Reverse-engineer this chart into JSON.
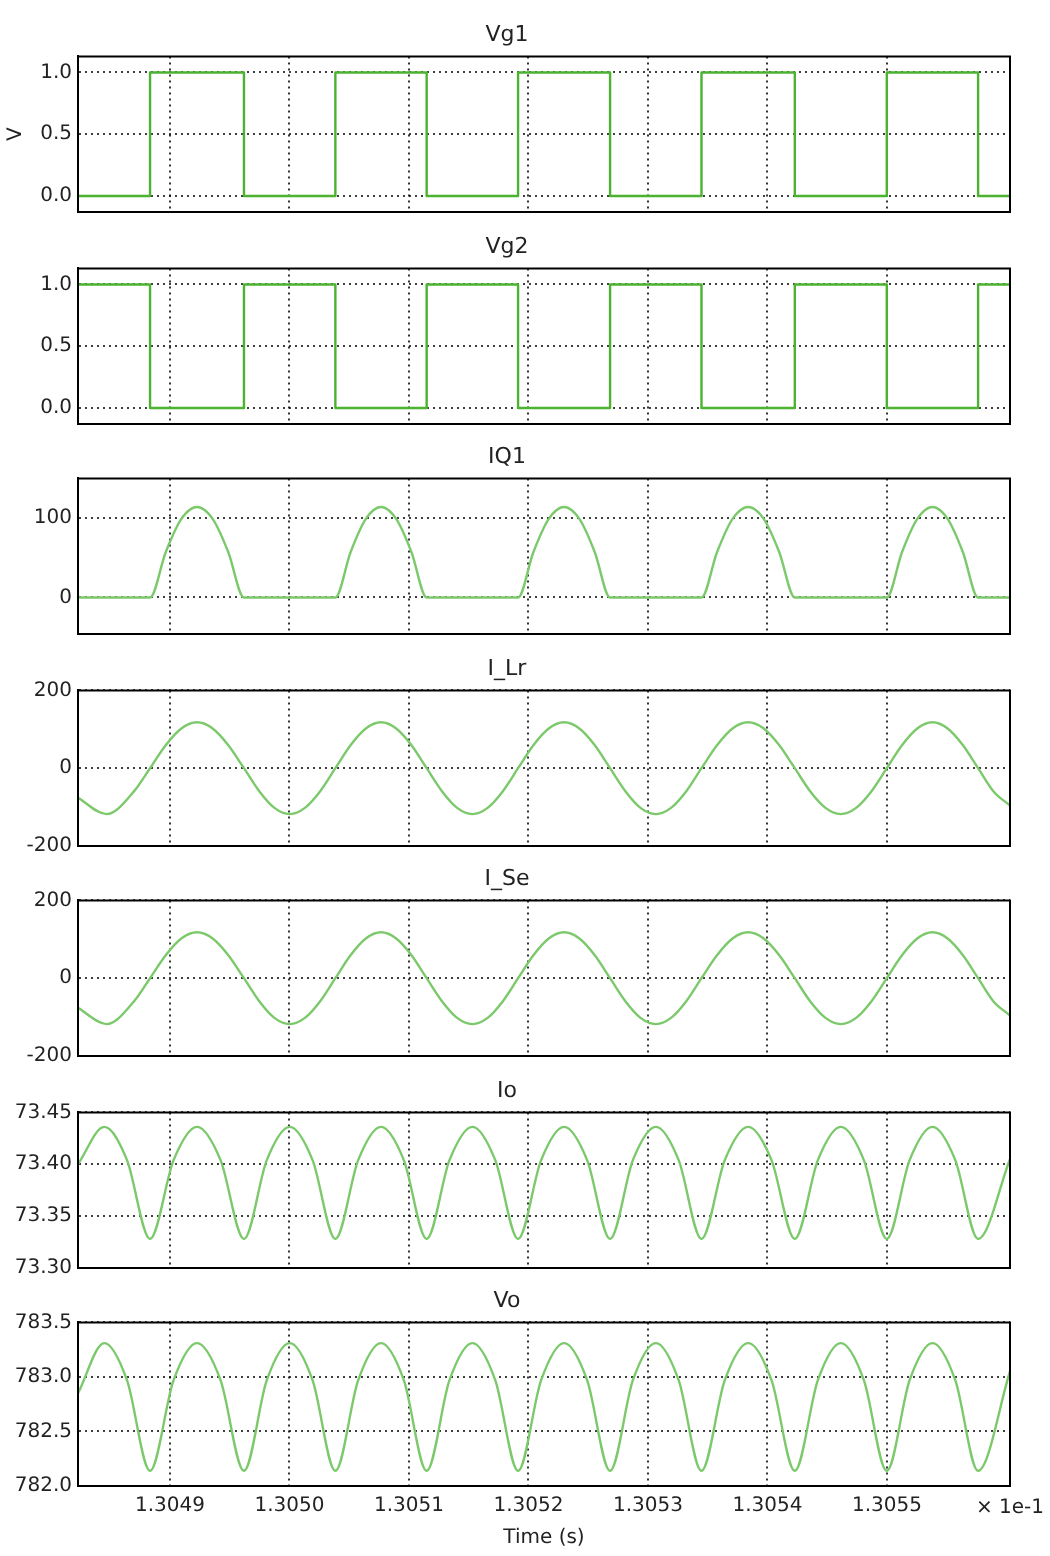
{
  "chart_data": [
    {
      "type": "step",
      "title": "Vg1",
      "ylabel": "V",
      "color": "#4cb332",
      "grid": true,
      "tick_labels": "y",
      "x": [
        1.304823,
        1.3048833,
        1.3049619,
        1.3050384,
        1.3051148,
        1.3051913,
        1.3052683,
        1.3053448,
        1.3054229,
        1.3054999,
        1.3055763,
        1.305603
      ],
      "values": [
        0,
        1,
        0,
        1,
        0,
        1,
        0,
        1,
        0,
        1,
        0,
        0
      ],
      "xlim": [
        1.304823,
        1.305603
      ],
      "xticks": [
        1.3049,
        1.305,
        1.3051,
        1.3052,
        1.3053,
        1.3054,
        1.3055
      ],
      "ylim": [
        -0.13,
        1.13
      ],
      "yticks": [
        {
          "value": 0,
          "label": "0.0"
        },
        0.5,
        {
          "value": 1,
          "label": "1.0"
        }
      ]
    },
    {
      "type": "step",
      "title": "Vg2",
      "color": "#4cb332",
      "grid": true,
      "tick_labels": "y",
      "x": [
        1.304823,
        1.3048833,
        1.3049619,
        1.3050384,
        1.3051148,
        1.3051913,
        1.3052683,
        1.3053448,
        1.3054229,
        1.3054999,
        1.3055763,
        1.305603
      ],
      "values": [
        1,
        0,
        1,
        0,
        1,
        0,
        1,
        0,
        1,
        0,
        1,
        1
      ],
      "xlim": [
        1.304823,
        1.305603
      ],
      "xticks": [
        1.3049,
        1.305,
        1.3051,
        1.3052,
        1.3053,
        1.3054,
        1.3055
      ],
      "ylim": [
        -0.13,
        1.13
      ],
      "yticks": [
        {
          "value": 0,
          "label": "0.0"
        },
        0.5,
        {
          "value": 1,
          "label": "1.0"
        }
      ]
    },
    {
      "type": "line",
      "title": "IQ1",
      "color": "#7cc96c",
      "grid": true,
      "tick_labels": "y",
      "x": [
        1.304823,
        1.3048833,
        1.3048964,
        1.3049095,
        1.3049226,
        1.3049357,
        1.3049488,
        1.3049619,
        1.3050384,
        1.3050511,
        1.3050639,
        1.3050766,
        1.3050893,
        1.3051021,
        1.3051148,
        1.3051913,
        1.3052041,
        1.305217,
        1.3052298,
        1.3052426,
        1.3052555,
        1.3052683,
        1.3053448,
        1.3053578,
        1.3053708,
        1.3053839,
        1.3053969,
        1.3054099,
        1.3054229,
        1.3054999,
        1.3055126,
        1.3055254,
        1.3055381,
        1.3055508,
        1.3055636,
        1.3055763,
        1.305603
      ],
      "values": [
        0,
        0,
        57,
        99,
        114,
        99,
        57,
        0,
        0,
        57,
        99,
        114,
        99,
        57,
        0,
        0,
        57,
        99,
        114,
        99,
        57,
        0,
        0,
        57,
        99,
        114,
        99,
        57,
        0,
        0,
        57,
        99,
        114,
        99,
        57,
        0,
        0
      ],
      "xlim": [
        1.304823,
        1.305603
      ],
      "xticks": [
        1.3049,
        1.305,
        1.3051,
        1.3052,
        1.3053,
        1.3054,
        1.3055
      ],
      "ylim": [
        -46,
        150
      ],
      "yticks": [
        0,
        100
      ]
    },
    {
      "type": "line",
      "title": "I_Lr",
      "color": "#7cc96c",
      "grid": true,
      "tick_labels": "y",
      "x": [
        1.304823,
        1.304847,
        1.30487,
        1.3048833,
        1.3048964,
        1.3049095,
        1.3049226,
        1.3049357,
        1.3049488,
        1.3049619,
        1.3049747,
        1.3049874,
        1.3050002,
        1.3050129,
        1.3050257,
        1.3050384,
        1.3050511,
        1.3050639,
        1.3050766,
        1.3050893,
        1.3051021,
        1.3051148,
        1.3051276,
        1.3051403,
        1.3051531,
        1.3051658,
        1.3051786,
        1.3051913,
        1.3052041,
        1.305217,
        1.3052298,
        1.3052426,
        1.3052555,
        1.3052683,
        1.3052811,
        1.3052938,
        1.3053066,
        1.3053193,
        1.3053321,
        1.3053448,
        1.3053578,
        1.3053708,
        1.3053839,
        1.3053969,
        1.3054099,
        1.3054229,
        1.3054357,
        1.3054486,
        1.3054614,
        1.3054742,
        1.3054871,
        1.3054999,
        1.3055126,
        1.3055254,
        1.3055381,
        1.3055508,
        1.3055636,
        1.3055763,
        1.305589,
        1.305603
      ],
      "values": [
        -76,
        -118,
        -59,
        0,
        59,
        102,
        118,
        102,
        59,
        0,
        -59,
        -102,
        -118,
        -102,
        -59,
        0,
        59,
        102,
        118,
        102,
        59,
        0,
        -59,
        -102,
        -118,
        -102,
        -59,
        0,
        59,
        102,
        118,
        102,
        59,
        0,
        -59,
        -102,
        -118,
        -102,
        -59,
        0,
        59,
        102,
        118,
        102,
        59,
        0,
        -59,
        -102,
        -118,
        -102,
        -59,
        0,
        59,
        102,
        118,
        102,
        59,
        0,
        -59,
        -96
      ],
      "xlim": [
        1.304823,
        1.305603
      ],
      "xticks": [
        1.3049,
        1.305,
        1.3051,
        1.3052,
        1.3053,
        1.3054,
        1.3055
      ],
      "ylim": [
        -200,
        200
      ],
      "yticks": [
        -200,
        0,
        200
      ]
    },
    {
      "type": "line",
      "title": "I_Se",
      "color": "#7cc96c",
      "grid": true,
      "tick_labels": "y",
      "x": [
        1.304823,
        1.304847,
        1.30487,
        1.3048833,
        1.3048964,
        1.3049095,
        1.3049226,
        1.3049357,
        1.3049488,
        1.3049619,
        1.3049747,
        1.3049874,
        1.3050002,
        1.3050129,
        1.3050257,
        1.3050384,
        1.3050511,
        1.3050639,
        1.3050766,
        1.3050893,
        1.3051021,
        1.3051148,
        1.3051276,
        1.3051403,
        1.3051531,
        1.3051658,
        1.3051786,
        1.3051913,
        1.3052041,
        1.305217,
        1.3052298,
        1.3052426,
        1.3052555,
        1.3052683,
        1.3052811,
        1.3052938,
        1.3053066,
        1.3053193,
        1.3053321,
        1.3053448,
        1.3053578,
        1.3053708,
        1.3053839,
        1.3053969,
        1.3054099,
        1.3054229,
        1.3054357,
        1.3054486,
        1.3054614,
        1.3054742,
        1.3054871,
        1.3054999,
        1.3055126,
        1.3055254,
        1.3055381,
        1.3055508,
        1.3055636,
        1.3055763,
        1.305589,
        1.305603
      ],
      "values": [
        -76,
        -118,
        -59,
        0,
        59,
        102,
        118,
        102,
        59,
        0,
        -59,
        -102,
        -118,
        -102,
        -59,
        0,
        59,
        102,
        118,
        102,
        59,
        0,
        -59,
        -102,
        -118,
        -102,
        -59,
        0,
        59,
        102,
        118,
        102,
        59,
        0,
        -59,
        -102,
        -118,
        -102,
        -59,
        0,
        59,
        102,
        118,
        102,
        59,
        0,
        -59,
        -102,
        -118,
        -102,
        -59,
        0,
        59,
        102,
        118,
        102,
        59,
        0,
        -59,
        -96
      ],
      "xlim": [
        1.304823,
        1.305603
      ],
      "xticks": [
        1.3049,
        1.305,
        1.3051,
        1.3052,
        1.3053,
        1.3054,
        1.3055
      ],
      "ylim": [
        -200,
        200
      ],
      "yticks": [
        -200,
        0,
        200
      ]
    },
    {
      "type": "line",
      "title": "Io",
      "color": "#7cc96c",
      "grid": true,
      "tick_labels": "y",
      "x": [
        1.304823,
        1.304845,
        1.304864,
        1.3048833,
        1.304903,
        1.3049226,
        1.3049423,
        1.3049619,
        1.304981,
        1.3050002,
        1.3050193,
        1.3050384,
        1.3050575,
        1.3050766,
        1.3050957,
        1.3051148,
        1.3051339,
        1.3051531,
        1.3051722,
        1.3051913,
        1.3052106,
        1.3052298,
        1.3052491,
        1.3052683,
        1.3052874,
        1.3053066,
        1.3053257,
        1.3053448,
        1.3053643,
        1.3053839,
        1.3054034,
        1.3054229,
        1.3054422,
        1.3054614,
        1.3054807,
        1.3054999,
        1.305519,
        1.3055381,
        1.3055572,
        1.3055763,
        1.305603
      ],
      "values": [
        73.4,
        73.436,
        73.404,
        73.328,
        73.404,
        73.436,
        73.404,
        73.328,
        73.404,
        73.436,
        73.404,
        73.328,
        73.404,
        73.436,
        73.404,
        73.328,
        73.404,
        73.436,
        73.404,
        73.328,
        73.404,
        73.436,
        73.404,
        73.328,
        73.404,
        73.436,
        73.404,
        73.328,
        73.404,
        73.436,
        73.404,
        73.328,
        73.404,
        73.436,
        73.404,
        73.328,
        73.404,
        73.436,
        73.404,
        73.328,
        73.405
      ],
      "xlim": [
        1.304823,
        1.305603
      ],
      "xticks": [
        1.3049,
        1.305,
        1.3051,
        1.3052,
        1.3053,
        1.3054,
        1.3055
      ],
      "ylim": [
        73.3,
        73.45
      ],
      "yticks": [
        {
          "value": 73.3,
          "label": "73.30"
        },
        73.35,
        {
          "value": 73.4,
          "label": "73.40"
        },
        73.45
      ]
    },
    {
      "type": "line",
      "title": "Vo",
      "xlabel": "Time (s)",
      "annotations": [
        "× 1e-1"
      ],
      "color": "#7cc96c",
      "grid": true,
      "x": [
        1.304823,
        1.304845,
        1.304864,
        1.3048833,
        1.304903,
        1.3049226,
        1.3049423,
        1.3049619,
        1.304981,
        1.3050002,
        1.3050193,
        1.3050384,
        1.3050575,
        1.3050766,
        1.3050957,
        1.3051148,
        1.3051339,
        1.3051531,
        1.3051722,
        1.3051913,
        1.3052106,
        1.3052298,
        1.3052491,
        1.3052683,
        1.3052874,
        1.3053066,
        1.3053257,
        1.3053448,
        1.3053643,
        1.3053839,
        1.3054034,
        1.3054229,
        1.3054422,
        1.3054614,
        1.3054807,
        1.3054999,
        1.305519,
        1.3055381,
        1.3055572,
        1.3055763,
        1.305603
      ],
      "values": [
        782.85,
        783.31,
        782.97,
        782.14,
        782.97,
        783.31,
        782.97,
        782.14,
        782.97,
        783.31,
        782.97,
        782.14,
        782.97,
        783.31,
        782.97,
        782.14,
        782.97,
        783.31,
        782.97,
        782.14,
        782.97,
        783.31,
        782.97,
        782.14,
        782.97,
        783.31,
        782.97,
        782.14,
        782.97,
        783.31,
        782.97,
        782.14,
        782.97,
        783.31,
        782.97,
        782.14,
        782.97,
        783.31,
        782.97,
        782.14,
        783.05
      ],
      "xlim": [
        1.304823,
        1.305603
      ],
      "xticks": [
        1.3049,
        {
          "value": 1.305,
          "label": "1.3050"
        },
        1.3051,
        1.3052,
        1.3053,
        1.3054,
        1.3055
      ],
      "ylim": [
        782,
        783.5
      ],
      "yticks": [
        {
          "value": 782,
          "label": "782.0"
        },
        782.5,
        {
          "value": 783,
          "label": "783.0"
        },
        783.5
      ]
    }
  ]
}
